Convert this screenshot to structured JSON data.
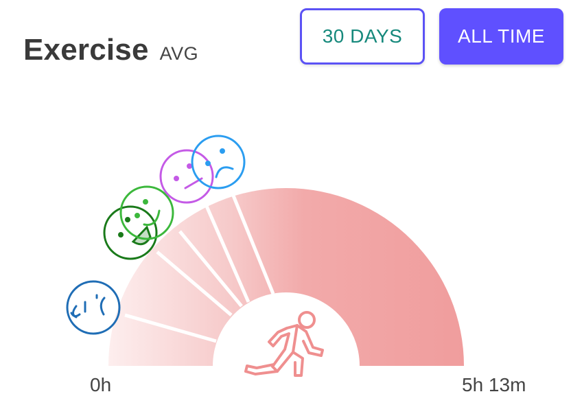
{
  "header": {
    "title": "Exercise",
    "subtitle": "AVG"
  },
  "range_buttons": {
    "days_label": "30 DAYS",
    "all_time_label": "ALL TIME"
  },
  "gauge": {
    "min_label": "0h",
    "max_label": "5h 13m",
    "center_icon": "running-person-icon",
    "value_fraction": 1.0,
    "mood_markers": [
      {
        "name": "crying-face-icon",
        "color": "#1f6db5"
      },
      {
        "name": "laughing-face-icon",
        "color": "#1a7a1a"
      },
      {
        "name": "happy-face-icon",
        "color": "#3cb83c"
      },
      {
        "name": "neutral-face-icon",
        "color": "#c45ae6"
      },
      {
        "name": "sad-face-icon",
        "color": "#2b9df0"
      }
    ]
  },
  "colors": {
    "accent": "#5f50ff",
    "days_text": "#16897c",
    "gauge": "#f0a0a0"
  }
}
